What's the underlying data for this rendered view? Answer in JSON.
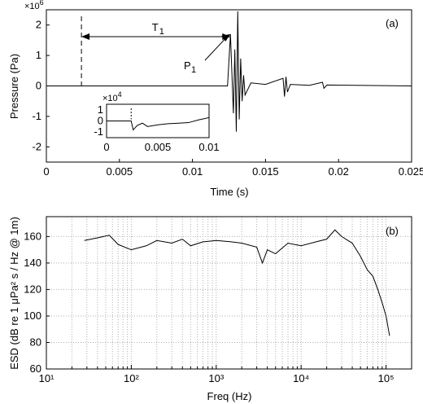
{
  "chart_data": [
    {
      "type": "line",
      "panel_label": "(a)",
      "xlabel": "Time (s)",
      "ylabel": "Pressure (Pa)",
      "xlim": [
        0,
        0.025
      ],
      "ylim": [
        -2.5,
        2.5
      ],
      "y_multiplier": "×10^6",
      "xticks": [
        "0",
        "0.005",
        "0.01",
        "0.015",
        "0.02",
        "0.025"
      ],
      "yticks": [
        "-2",
        "-1",
        "0",
        "1",
        "2"
      ],
      "grid": false,
      "annotations": {
        "t1_label": "T",
        "t1_sub": "1",
        "p1_label": "P",
        "p1_sub": "1",
        "t1_start": 0.0024,
        "t1_end": 0.0126,
        "p1_time": 0.0126,
        "p1_pressure": 1.7
      },
      "series": [
        {
          "values_note_free": true,
          "x": [
            0,
            0.0024,
            0.0124,
            0.0126,
            0.0128,
            0.0129,
            0.013,
            0.0131,
            0.0132,
            0.0133,
            0.0134,
            0.0135,
            0.0136,
            0.014,
            0.015,
            0.0162,
            0.0163,
            0.0164,
            0.0165,
            0.0167,
            0.018,
            0.0189,
            0.019,
            0.0192,
            0.025
          ],
          "y": [
            0,
            0,
            0,
            1.7,
            -0.9,
            1.2,
            -1.5,
            2.45,
            -1.1,
            0.9,
            -0.5,
            0.35,
            -0.3,
            0.1,
            0.05,
            0.25,
            -0.35,
            0.3,
            -0.2,
            0.05,
            0.02,
            0.12,
            -0.08,
            0.03,
            0
          ]
        }
      ],
      "inset": {
        "xlim": [
          0,
          0.01
        ],
        "ylim": [
          -1.5,
          1.5
        ],
        "y_multiplier": "×10^4",
        "xticks": [
          "0",
          "0.005",
          "0.01"
        ],
        "yticks": [
          "-1",
          "0",
          "1"
        ],
        "x": [
          0,
          0.0024,
          0.0026,
          0.0028,
          0.003,
          0.0035,
          0.004,
          0.005,
          0.006,
          0.007,
          0.008,
          0.009,
          0.01
        ],
        "y": [
          0,
          0,
          -0.8,
          -0.6,
          -0.4,
          -0.2,
          -0.5,
          -0.35,
          -0.25,
          -0.2,
          -0.15,
          0.1,
          0.3
        ]
      }
    },
    {
      "type": "line",
      "panel_label": "(b)",
      "xlabel": "Freq (Hz)",
      "ylabel": "ESD (dB re 1 μPa² s / Hz @ 1m)",
      "xscale": "log",
      "xlim": [
        10,
        200000
      ],
      "ylim": [
        60,
        175
      ],
      "xticks": [
        "10¹",
        "10²",
        "10³",
        "10⁴",
        "10⁵"
      ],
      "yticks": [
        "60",
        "80",
        "100",
        "120",
        "140",
        "160"
      ],
      "grid": true,
      "series": [
        {
          "x": [
            28,
            40,
            55,
            70,
            100,
            150,
            200,
            300,
            400,
            500,
            700,
            1000,
            1500,
            2000,
            3000,
            3500,
            4000,
            5000,
            7000,
            10000,
            15000,
            20000,
            25000,
            30000,
            40000,
            50000,
            60000,
            70000,
            80000,
            90000,
            100000,
            110000
          ],
          "y": [
            157,
            159,
            161,
            154,
            150,
            153,
            157,
            155,
            158,
            153,
            156,
            157,
            156,
            155,
            152,
            140,
            150,
            147,
            155,
            153,
            156,
            158,
            165,
            160,
            155,
            145,
            135,
            130,
            120,
            110,
            100,
            85
          ]
        }
      ]
    }
  ]
}
